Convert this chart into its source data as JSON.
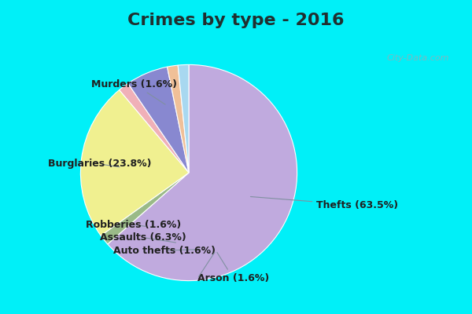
{
  "title": "Crimes by type - 2016",
  "labels_ordered": [
    "Thefts",
    "Murders",
    "Burglaries",
    "Robberies",
    "Assaults",
    "Auto thefts",
    "Arson"
  ],
  "values_ordered": [
    63.5,
    1.6,
    23.8,
    1.6,
    6.3,
    1.6,
    1.6
  ],
  "colors_ordered": [
    "#c0aade",
    "#9aba88",
    "#f0f090",
    "#f0b0b8",
    "#8888d0",
    "#f0c098",
    "#a8d8f0"
  ],
  "title_color": "#203030",
  "title_bg": "#00f0f8",
  "chart_bg_color": "#d8ede0",
  "border_color": "#00f0f8",
  "title_fontsize": 16,
  "label_fontsize": 9,
  "startangle": 90,
  "watermark": "City-Data.com",
  "annotation_color": "#8090a0",
  "label_color": "#202020",
  "annotations": {
    "Thefts (63.5%)": {
      "point": [
        0.55,
        -0.22
      ],
      "text": [
        1.18,
        -0.3
      ]
    },
    "Murders (1.6%)": {
      "point": [
        -0.2,
        0.62
      ],
      "text": [
        -0.9,
        0.82
      ]
    },
    "Burglaries (23.8%)": {
      "point": [
        -0.62,
        0.05
      ],
      "text": [
        -1.3,
        0.08
      ]
    },
    "Robberies (1.6%)": {
      "point": [
        -0.38,
        -0.5
      ],
      "text": [
        -0.95,
        -0.48
      ]
    },
    "Assaults (6.3%)": {
      "point": [
        -0.1,
        -0.65
      ],
      "text": [
        -0.82,
        -0.6
      ]
    },
    "Auto thefts (1.6%)": {
      "point": [
        0.12,
        -0.71
      ],
      "text": [
        -0.7,
        -0.72
      ]
    },
    "Arson (1.6%)": {
      "point": [
        0.25,
        -0.72
      ],
      "text": [
        0.08,
        -0.98
      ]
    }
  }
}
